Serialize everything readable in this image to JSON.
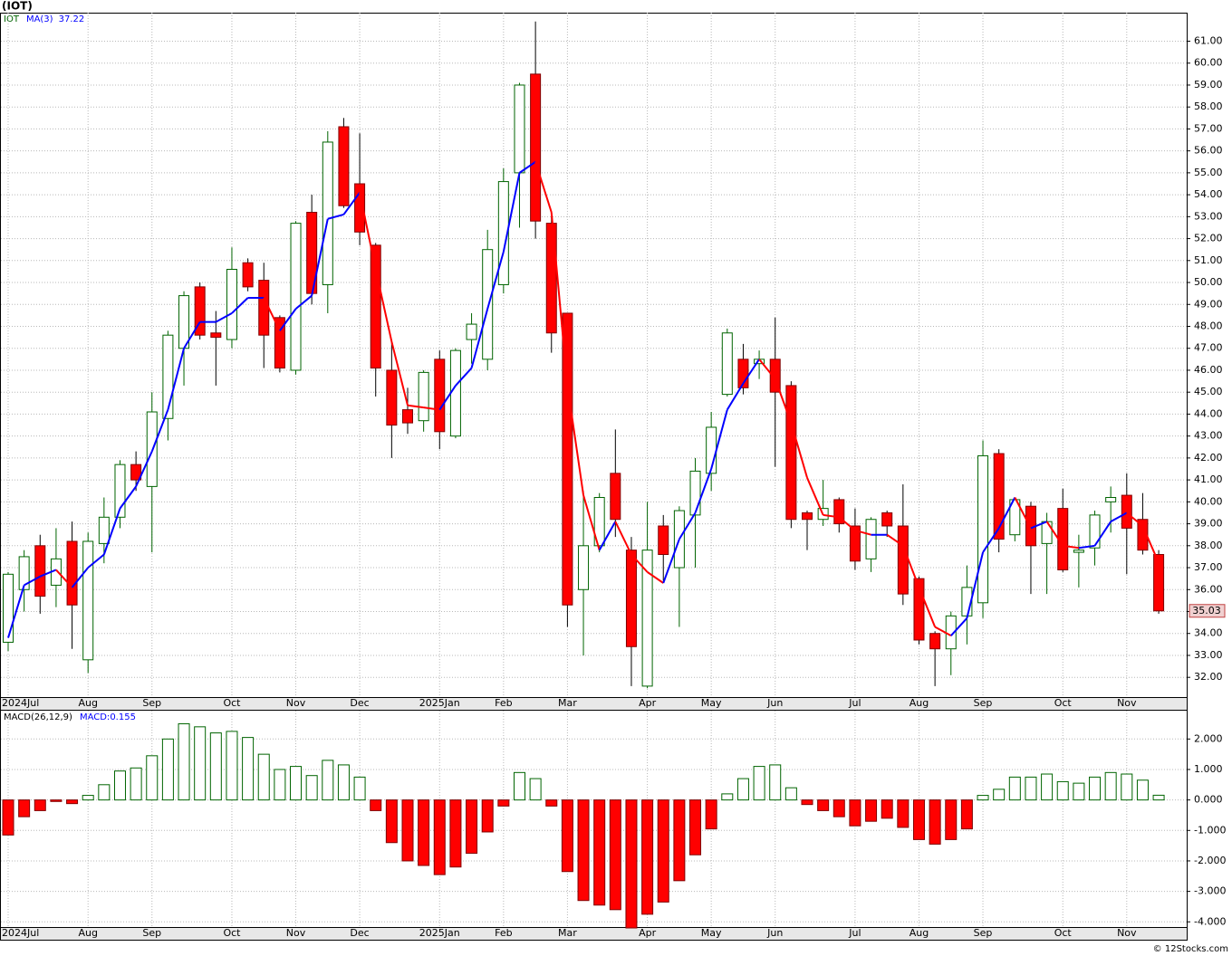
{
  "chart_data": [
    {
      "type": "candlestick",
      "title": "(IOT)",
      "symbol": "IOT",
      "ma_name": "MA(3)",
      "categories": [
        "2024Jul",
        null,
        null,
        null,
        null,
        "Aug",
        null,
        null,
        null,
        "Sep",
        null,
        null,
        null,
        null,
        "Oct",
        null,
        null,
        null,
        "Nov",
        null,
        null,
        null,
        "Dec",
        null,
        null,
        null,
        null,
        "2025Jan",
        null,
        null,
        null,
        "Feb",
        null,
        null,
        null,
        "Mar",
        null,
        null,
        null,
        null,
        "Apr",
        null,
        null,
        null,
        "May",
        null,
        null,
        null,
        "Jun",
        null,
        null,
        null,
        null,
        "Jul",
        null,
        null,
        null,
        "Aug",
        null,
        null,
        null,
        "Sep",
        null,
        null,
        null,
        null,
        "Oct",
        null,
        null,
        null,
        "Nov",
        null,
        null
      ],
      "open": [
        33.6,
        36,
        38,
        36.2,
        38.2,
        32.8,
        38.1,
        39.3,
        41.7,
        40.7,
        43.8,
        47,
        49.8,
        47.7,
        47.4,
        50.9,
        50.1,
        48.4,
        46,
        53.2,
        49.9,
        57.1,
        54.5,
        51.7,
        46,
        44.2,
        43.7,
        46.5,
        43,
        47.4,
        46.5,
        49.9,
        55,
        59.5,
        52.7,
        48.6,
        36,
        38,
        41.3,
        37.8,
        31.6,
        38.9,
        37,
        39.4,
        41.3,
        44.9,
        46.5,
        46.3,
        46.5,
        45.3,
        39.5,
        39.2,
        40.1,
        38.9,
        37.4,
        39.5,
        38.9,
        36.5,
        34,
        33.3,
        34.8,
        35.4,
        42.2,
        38.5,
        39.8,
        38.1,
        39.7,
        37.7,
        37.9,
        40,
        40.3,
        39.2,
        37.6
      ],
      "high": [
        36.8,
        37.8,
        38.5,
        38.8,
        39.1,
        38.6,
        40.2,
        41.9,
        42.3,
        45,
        47.8,
        49.6,
        50,
        48.7,
        51.6,
        51.1,
        50.9,
        48.5,
        52.8,
        54,
        56.9,
        57.5,
        56.8,
        51.8,
        47.4,
        45.2,
        46,
        46.9,
        47,
        48.6,
        52.4,
        55.2,
        59.1,
        61.9,
        53,
        48.6,
        40.5,
        40.4,
        43.3,
        38.4,
        40,
        39.4,
        39.8,
        42,
        44.1,
        47.9,
        47.2,
        46.9,
        48.4,
        45.5,
        39.6,
        41,
        40.2,
        39.7,
        39.3,
        39.6,
        40.8,
        36.6,
        34.1,
        35,
        37.1,
        42.8,
        42.4,
        40.2,
        40,
        39.5,
        40.6,
        38.5,
        39.6,
        40.7,
        41.3,
        40.4,
        37.8
      ],
      "low": [
        33.2,
        35,
        34.9,
        35.2,
        33.3,
        32.2,
        37.2,
        38.8,
        40.5,
        37.7,
        42.8,
        45.3,
        47.4,
        45.3,
        47,
        49.6,
        46.1,
        45.9,
        45.8,
        49,
        48.6,
        53.4,
        51.7,
        44.8,
        42,
        43.1,
        43.2,
        42.4,
        42.9,
        46.3,
        46,
        49.5,
        52.5,
        52,
        46.8,
        34.3,
        33,
        37.7,
        38.4,
        31.6,
        31.5,
        36.4,
        34.3,
        37,
        40.5,
        44.8,
        44.9,
        45.6,
        41.6,
        38.8,
        37.8,
        38.9,
        38.6,
        36.9,
        36.8,
        38.4,
        35.3,
        33.5,
        31.6,
        32.1,
        33.5,
        34.7,
        37.7,
        38.2,
        35.8,
        35.8,
        36.8,
        36.1,
        37.1,
        38.6,
        36.7,
        37.6,
        34.9
      ],
      "close": [
        36.7,
        37.5,
        35.7,
        37.4,
        35.3,
        38.2,
        39.3,
        41.7,
        41,
        44.1,
        47.6,
        49.4,
        47.6,
        47.5,
        50.6,
        49.8,
        47.6,
        46.1,
        52.7,
        49.5,
        56.4,
        53.5,
        52.3,
        46.1,
        43.5,
        43.6,
        45.9,
        43.2,
        46.9,
        48.1,
        51.5,
        54.6,
        59,
        52.8,
        47.7,
        35.3,
        38,
        40.2,
        39.2,
        33.4,
        37.8,
        37.6,
        39.6,
        41.4,
        43.4,
        47.7,
        45.2,
        46.5,
        45,
        39.2,
        39.2,
        39.7,
        39,
        37.3,
        39.2,
        38.9,
        35.8,
        33.7,
        33.3,
        34.8,
        36.1,
        42.1,
        38.3,
        40.1,
        38,
        39.1,
        36.9,
        37.8,
        39.4,
        40.2,
        38.8,
        37.8,
        35.03
      ],
      "ma": [
        33.8,
        36.2,
        36.6,
        36.9,
        36.1,
        37.0,
        37.6,
        39.7,
        40.7,
        42.3,
        44.2,
        47.0,
        48.2,
        48.2,
        48.6,
        49.3,
        49.3,
        47.8,
        48.8,
        49.4,
        52.9,
        53.1,
        54.1,
        50.6,
        47.3,
        44.4,
        44.3,
        44.2,
        45.3,
        46.1,
        48.8,
        51.4,
        55.0,
        55.5,
        53.2,
        45.3,
        40.3,
        37.8,
        39.1,
        37.6,
        36.8,
        36.3,
        38.3,
        39.5,
        41.5,
        44.2,
        45.4,
        46.5,
        45.6,
        43.6,
        41.1,
        39.4,
        39.3,
        38.7,
        38.5,
        38.5,
        38.0,
        36.1,
        34.3,
        33.9,
        34.7,
        37.7,
        38.8,
        40.2,
        38.8,
        39.1,
        38.0,
        37.9,
        38.0,
        39.1,
        39.5,
        38.9,
        37.22
      ],
      "up_color": "#006400",
      "down_color": "#ff0000",
      "ma_up_color": "#0000ff",
      "ma_down_color": "#ff0000",
      "ylim": [
        31.1,
        62.3
      ],
      "yticks": [
        {
          "value": 32,
          "label": "32.00"
        },
        {
          "value": 33,
          "label": "33.00"
        },
        {
          "value": 34,
          "label": "34.00"
        },
        {
          "value": 35,
          "label": "35.00"
        },
        {
          "value": 36,
          "label": "36.00"
        },
        {
          "value": 37,
          "label": "37.00"
        },
        {
          "value": 38,
          "label": "38.00"
        },
        {
          "value": 39,
          "label": "39.00"
        },
        {
          "value": 40,
          "label": "40.00"
        },
        {
          "value": 41,
          "label": "41.00"
        },
        {
          "value": 42,
          "label": "42.00"
        },
        {
          "value": 43,
          "label": "43.00"
        },
        {
          "value": 44,
          "label": "44.00"
        },
        {
          "value": 45,
          "label": "45.00"
        },
        {
          "value": 46,
          "label": "46.00"
        },
        {
          "value": 47,
          "label": "47.00"
        },
        {
          "value": 48,
          "label": "48.00"
        },
        {
          "value": 49,
          "label": "49.00"
        },
        {
          "value": 50,
          "label": "50.00"
        },
        {
          "value": 51,
          "label": "51.00"
        },
        {
          "value": 52,
          "label": "52.00"
        },
        {
          "value": 53,
          "label": "53.00"
        },
        {
          "value": 54,
          "label": "54.00"
        },
        {
          "value": 55,
          "label": "55.00"
        },
        {
          "value": 56,
          "label": "56.00"
        },
        {
          "value": 57,
          "label": "57.00"
        },
        {
          "value": 58,
          "label": "58.00"
        },
        {
          "value": 59,
          "label": "59.00"
        },
        {
          "value": 60,
          "label": "60.00"
        },
        {
          "value": 61,
          "label": "61.00"
        }
      ],
      "grid": true
    },
    {
      "type": "bar",
      "title": "MACD(26,12,9)",
      "value_name": "MACD:",
      "values": [
        -1.15,
        -0.55,
        -0.35,
        -0.05,
        -0.12,
        0.15,
        0.5,
        0.95,
        1.05,
        1.45,
        2.0,
        2.5,
        2.4,
        2.2,
        2.25,
        2.05,
        1.5,
        1.0,
        1.1,
        0.8,
        1.3,
        1.15,
        0.75,
        -0.35,
        -1.4,
        -2.0,
        -2.15,
        -2.45,
        -2.2,
        -1.75,
        -1.05,
        -0.2,
        0.9,
        0.7,
        -0.2,
        -2.35,
        -3.3,
        -3.45,
        -3.6,
        -4.2,
        -3.75,
        -3.35,
        -2.65,
        -1.8,
        -0.95,
        0.2,
        0.7,
        1.1,
        1.15,
        0.4,
        -0.15,
        -0.35,
        -0.55,
        -0.85,
        -0.7,
        -0.6,
        -0.9,
        -1.3,
        -1.45,
        -1.3,
        -0.95,
        0.15,
        0.35,
        0.75,
        0.75,
        0.85,
        0.6,
        0.55,
        0.75,
        0.9,
        0.85,
        0.65,
        0.155
      ],
      "up_color": "#006400",
      "down_color": "#ff0000",
      "ylim": [
        -4.17,
        2.93
      ],
      "yticks": [
        {
          "value": -4,
          "label": "-4.000"
        },
        {
          "value": -3,
          "label": "-3.000"
        },
        {
          "value": -2,
          "label": "-2.000"
        },
        {
          "value": -1,
          "label": "-1.000"
        },
        {
          "value": 0,
          "label": "0.000"
        },
        {
          "value": 1,
          "label": "1.000"
        },
        {
          "value": 2,
          "label": "2.000"
        }
      ],
      "grid": true
    }
  ],
  "footer": "© 12Stocks.com"
}
